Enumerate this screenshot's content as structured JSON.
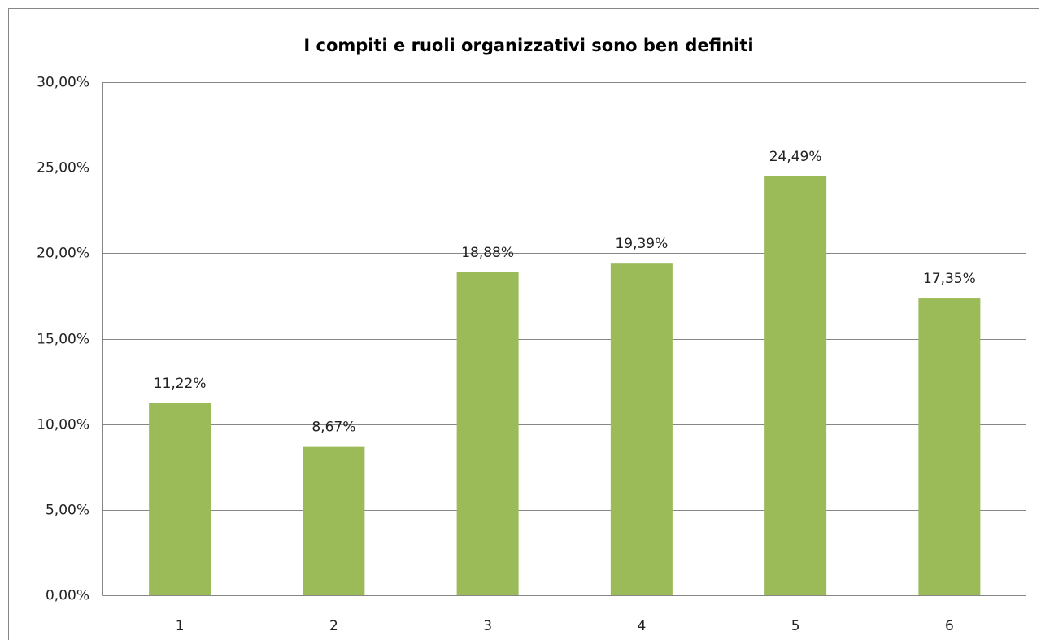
{
  "chart_data": {
    "type": "bar",
    "title": "I compiti e ruoli organizzativi sono ben definiti",
    "categories": [
      "1",
      "2",
      "3",
      "4",
      "5",
      "6"
    ],
    "values": [
      11.22,
      8.67,
      18.88,
      19.39,
      24.49,
      17.35
    ],
    "value_labels": [
      "11,22%",
      "8,67%",
      "18,88%",
      "19,39%",
      "24,49%",
      "17,35%"
    ],
    "color": "#9bbb59",
    "ylim": [
      0,
      30
    ],
    "yticks": [
      {
        "value": 0,
        "label": "0,00%"
      },
      {
        "value": 5,
        "label": "5,00%"
      },
      {
        "value": 10,
        "label": "10,00%"
      },
      {
        "value": 15,
        "label": "15,00%"
      },
      {
        "value": 20,
        "label": "20,00%"
      },
      {
        "value": 25,
        "label": "25,00%"
      },
      {
        "value": 30,
        "label": "30,00%"
      }
    ],
    "grid": true
  }
}
